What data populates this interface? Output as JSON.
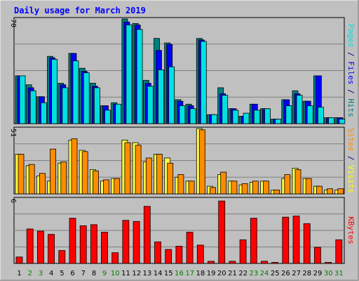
{
  "chart_data": [
    {
      "type": "bar",
      "panel": "top",
      "title": "Daily usage for March 2019",
      "ymax_label": "70",
      "right_labels": [
        {
          "text": "Pages",
          "color": "#00e0e0"
        },
        {
          "text": " / ",
          "color": "#000080"
        },
        {
          "text": "Files",
          "color": "#0000ff"
        },
        {
          "text": " / ",
          "color": "#000080"
        },
        {
          "text": "Hits",
          "color": "#008080"
        }
      ],
      "ylim": [
        0,
        70
      ],
      "categories": [
        "1",
        "2",
        "3",
        "4",
        "5",
        "6",
        "7",
        "8",
        "9",
        "10",
        "11",
        "12",
        "13",
        "14",
        "15",
        "16",
        "17",
        "18",
        "19",
        "20",
        "21",
        "22",
        "23",
        "24",
        "25",
        "26",
        "27",
        "28",
        "29",
        "30",
        "31"
      ],
      "series": [
        {
          "name": "Hits",
          "color": "#008080",
          "values": [
            32,
            26,
            18,
            45,
            27,
            47,
            37,
            27,
            12,
            14,
            70,
            67,
            29,
            57,
            54,
            16,
            13,
            57,
            6,
            24,
            10,
            5,
            13,
            10,
            3,
            16,
            22,
            15,
            32,
            4,
            4
          ]
        },
        {
          "name": "Files",
          "color": "#0000ff",
          "values": [
            32,
            24,
            18,
            44,
            26,
            47,
            35,
            25,
            12,
            13,
            68,
            66,
            27,
            49,
            53,
            15,
            12,
            56,
            6,
            20,
            10,
            5,
            13,
            10,
            3,
            16,
            20,
            15,
            32,
            4,
            4
          ]
        },
        {
          "name": "Pages",
          "color": "#00e0e0",
          "values": [
            32,
            22,
            14,
            43,
            24,
            42,
            34,
            24,
            9,
            13,
            66,
            63,
            25,
            36,
            38,
            12,
            10,
            55,
            6,
            19,
            9,
            7,
            9,
            10,
            3,
            12,
            19,
            12,
            11,
            4,
            3
          ]
        }
      ]
    },
    {
      "type": "bar",
      "panel": "middle",
      "ymax_label": "51",
      "right_labels": [
        {
          "text": "Sites",
          "color": "#ff8c00"
        },
        {
          "text": " / ",
          "color": "#000080"
        },
        {
          "text": "Visits",
          "color": "#ffff00"
        }
      ],
      "ylim": [
        0,
        51
      ],
      "categories": [
        "1",
        "2",
        "3",
        "4",
        "5",
        "6",
        "7",
        "8",
        "9",
        "10",
        "11",
        "12",
        "13",
        "14",
        "15",
        "16",
        "17",
        "18",
        "19",
        "20",
        "21",
        "22",
        "23",
        "24",
        "25",
        "26",
        "27",
        "28",
        "29",
        "30",
        "31"
      ],
      "series": [
        {
          "name": "Visits",
          "color": "#ffff40",
          "values": [
            31,
            22,
            14,
            10,
            24,
            42,
            34,
            19,
            10,
            12,
            42,
            40,
            25,
            31,
            28,
            13,
            10,
            51,
            6,
            15,
            10,
            7,
            9,
            10,
            3,
            12,
            20,
            12,
            6,
            3,
            3
          ]
        },
        {
          "name": "Sites",
          "color": "#ff8c00",
          "values": [
            31,
            23,
            16,
            35,
            25,
            43,
            33,
            18,
            11,
            12,
            40,
            38,
            28,
            31,
            24,
            15,
            10,
            50,
            5,
            17,
            10,
            8,
            10,
            10,
            3,
            15,
            19,
            12,
            6,
            4,
            4
          ]
        }
      ]
    },
    {
      "type": "bar",
      "panel": "bottom",
      "ymax_label": "6",
      "right_labels": [
        {
          "text": "KBytes",
          "color": "#ff0000"
        }
      ],
      "ylim": [
        0,
        6
      ],
      "categories": [
        "1",
        "2",
        "3",
        "4",
        "5",
        "6",
        "7",
        "8",
        "9",
        "10",
        "11",
        "12",
        "13",
        "14",
        "15",
        "16",
        "17",
        "18",
        "19",
        "20",
        "21",
        "22",
        "23",
        "24",
        "25",
        "26",
        "27",
        "28",
        "29",
        "30",
        "31"
      ],
      "series": [
        {
          "name": "KBytes",
          "color": "#ff0000",
          "values": [
            0.6,
            3.2,
            3.0,
            2.7,
            1.2,
            4.2,
            3.5,
            3.6,
            2.9,
            1.0,
            4.0,
            3.9,
            5.3,
            2.0,
            1.3,
            1.6,
            2.9,
            1.7,
            0.2,
            5.8,
            0.2,
            2.2,
            4.2,
            0.2,
            0.1,
            4.3,
            4.4,
            3.7,
            1.5,
            0.1,
            2.2
          ]
        }
      ]
    }
  ],
  "x_labels": {
    "values": [
      "1",
      "2",
      "3",
      "4",
      "5",
      "6",
      "7",
      "8",
      "9",
      "10",
      "11",
      "12",
      "13",
      "14",
      "15",
      "16",
      "17",
      "18",
      "19",
      "20",
      "21",
      "22",
      "23",
      "24",
      "25",
      "26",
      "27",
      "28",
      "29",
      "30",
      "31"
    ],
    "colors": [
      "#000000",
      "#008000",
      "#008000",
      "#000000",
      "#000000",
      "#000000",
      "#000000",
      "#000000",
      "#008000",
      "#008000",
      "#000000",
      "#000000",
      "#000000",
      "#000000",
      "#000000",
      "#008000",
      "#008000",
      "#000000",
      "#000000",
      "#000000",
      "#000000",
      "#000000",
      "#008000",
      "#008000",
      "#000000",
      "#000000",
      "#000000",
      "#000000",
      "#000000",
      "#008000",
      "#008000"
    ]
  },
  "colors": {
    "background": "#c0c0c0",
    "plot_background": "#c0c0c0",
    "title": "#0000ff",
    "axis_text": "#000000",
    "grid": "#808080"
  }
}
